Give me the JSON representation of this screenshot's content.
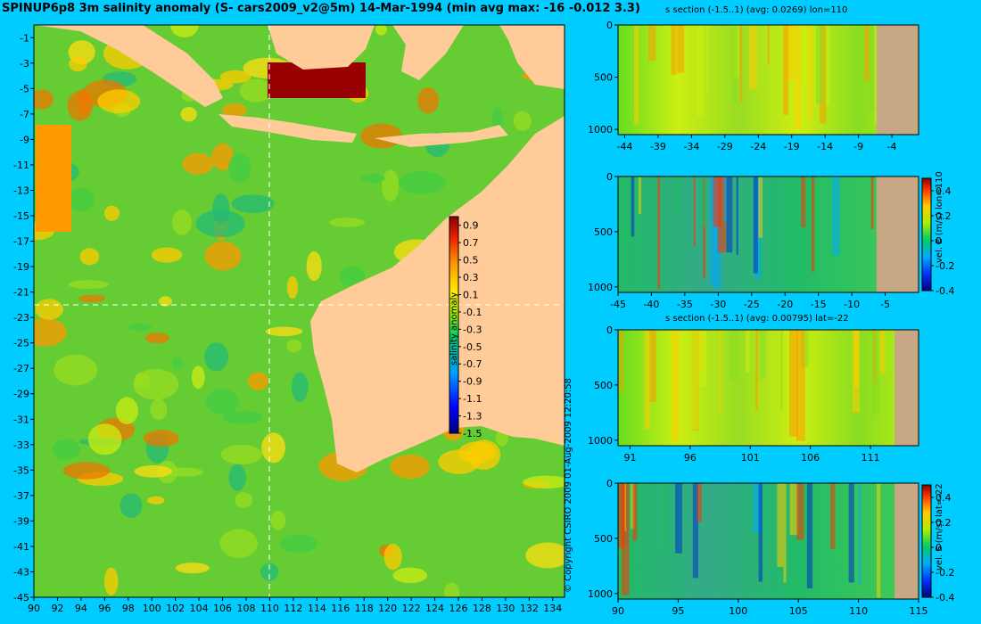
{
  "title": "SPINUP6p8 3m salinity anomaly (S- cars2009_v2@5m) 14-Mar-1994 (min avg max: -16 -0.012 3.3)",
  "copyright": "© Copyright CSIRO 2009   01-Aug-2009 12:20:58",
  "colors": {
    "background": "#00ccff",
    "land": "#ffcc99",
    "seabed": "#c8a884"
  },
  "chart_data": [
    {
      "type": "heatmap",
      "name": "map",
      "x_ticks": [
        "90",
        "92",
        "94",
        "96",
        "98",
        "100",
        "102",
        "104",
        "106",
        "108",
        "110",
        "112",
        "114",
        "116",
        "118",
        "120",
        "122",
        "124",
        "126",
        "128",
        "130",
        "132",
        "134"
      ],
      "y_ticks": [
        "-1",
        "-3",
        "-5",
        "-7",
        "-9",
        "-11",
        "-13",
        "-15",
        "-17",
        "-19",
        "-21",
        "-23",
        "-25",
        "-27",
        "-29",
        "-31",
        "-33",
        "-35",
        "-37",
        "-39",
        "-41",
        "-43",
        "-45"
      ],
      "xlim": [
        90,
        135
      ],
      "ylim": [
        -45,
        0
      ],
      "crosshair": {
        "lon": 110,
        "lat": -22
      },
      "colorbar": {
        "label": "salinity anomaly",
        "ticks": [
          "0.9",
          "0.7",
          "0.5",
          "0.3",
          "0.1",
          "-0.1",
          "-0.3",
          "-0.5",
          "-0.7",
          "-0.9",
          "-1.1",
          "-1.3",
          "-1.5"
        ],
        "range": [
          -1.5,
          1.0
        ]
      }
    },
    {
      "type": "heatmap",
      "name": "section-1",
      "title": "s section (-1.5..1) (avg: 0.0269) lon=110",
      "x_ticks": [
        "-44",
        "-39",
        "-34",
        "-29",
        "-24",
        "-19",
        "-14",
        "-9",
        "-4"
      ],
      "y_ticks": [
        "0",
        "500",
        "1000"
      ],
      "xlim": [
        -45,
        0
      ],
      "ylim": [
        1050,
        0
      ]
    },
    {
      "type": "heatmap",
      "name": "section-2",
      "x_ticks": [
        "-45",
        "-40",
        "-35",
        "-30",
        "-25",
        "-20",
        "-15",
        "-10",
        "-5"
      ],
      "y_ticks": [
        "0",
        "500",
        "1000"
      ],
      "xlim": [
        -45,
        0
      ],
      "ylim": [
        1050,
        0
      ],
      "colorbar": {
        "label": "vel. E (m/s) lon=110",
        "ticks": [
          "0.4",
          "0.2",
          "0",
          "-0.2",
          "-0.4"
        ],
        "range": [
          -0.4,
          0.5
        ]
      }
    },
    {
      "type": "heatmap",
      "name": "section-3",
      "title": "s section (-1.5..1) (avg: 0.00795) lat=-22",
      "x_ticks": [
        "91",
        "96",
        "101",
        "106",
        "111"
      ],
      "y_ticks": [
        "0",
        "500",
        "1000"
      ],
      "xlim": [
        90,
        115
      ],
      "ylim": [
        1050,
        0
      ]
    },
    {
      "type": "heatmap",
      "name": "section-4",
      "x_ticks": [
        "90",
        "95",
        "100",
        "105",
        "110",
        "115"
      ],
      "y_ticks": [
        "0",
        "500",
        "1000"
      ],
      "xlim": [
        90,
        115
      ],
      "ylim": [
        1050,
        0
      ],
      "colorbar": {
        "label": "vel. S (m/s) lat=-22",
        "ticks": [
          "0.4",
          "0.2",
          "0",
          "-0.2",
          "-0.4"
        ],
        "range": [
          -0.4,
          0.5
        ]
      }
    }
  ]
}
